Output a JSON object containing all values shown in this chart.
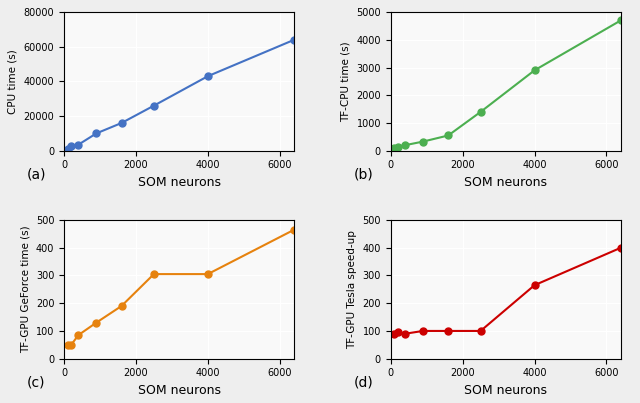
{
  "a": {
    "x": [
      100,
      200,
      400,
      900,
      1600,
      2500,
      4000,
      6400
    ],
    "y": [
      1000,
      2500,
      3500,
      10000,
      16000,
      26000,
      43000,
      64000
    ],
    "color": "#4472C4",
    "ylabel": "CPU time (s)",
    "xlabel": "SOM neurons",
    "label": "(a)",
    "ylim": [
      0,
      80000
    ],
    "yticks": [
      0,
      20000,
      40000,
      60000,
      80000
    ],
    "xticks": [
      0,
      2000,
      4000,
      6000
    ]
  },
  "b": {
    "x": [
      100,
      200,
      400,
      900,
      1600,
      2500,
      4000,
      6400
    ],
    "y": [
      100,
      150,
      200,
      330,
      550,
      1400,
      2900,
      4700
    ],
    "color": "#4CAF50",
    "ylabel": "TF-CPU time (s)",
    "xlabel": "SOM neurons",
    "label": "(b)",
    "ylim": [
      0,
      5000
    ],
    "yticks": [
      0,
      1000,
      2000,
      3000,
      4000,
      5000
    ],
    "xticks": [
      0,
      2000,
      4000,
      6000
    ]
  },
  "c": {
    "x": [
      100,
      200,
      400,
      900,
      1600,
      2500,
      4000,
      6400
    ],
    "y": [
      50,
      50,
      85,
      130,
      190,
      305,
      305,
      465
    ],
    "color": "#E6820E",
    "ylabel": "TF-GPU GeForce time (s)",
    "xlabel": "SOM neurons",
    "label": "(c)",
    "ylim": [
      0,
      500
    ],
    "yticks": [
      0,
      100,
      200,
      300,
      400,
      500
    ],
    "xticks": [
      0,
      2000,
      4000,
      6000
    ]
  },
  "d": {
    "x": [
      100,
      200,
      400,
      900,
      1600,
      2500,
      4000,
      6400
    ],
    "y": [
      90,
      95,
      90,
      100,
      100,
      100,
      265,
      400
    ],
    "color": "#CC0000",
    "ylabel": "TF-GPU Tesla speed-up",
    "xlabel": "SOM neurons",
    "label": "(d)",
    "ylim": [
      0,
      500
    ],
    "yticks": [
      0,
      100,
      200,
      300,
      400,
      500
    ],
    "xticks": [
      0,
      2000,
      4000,
      6000
    ]
  },
  "bg_color": "#eeeeee",
  "plot_bg": "#f9f9f9"
}
